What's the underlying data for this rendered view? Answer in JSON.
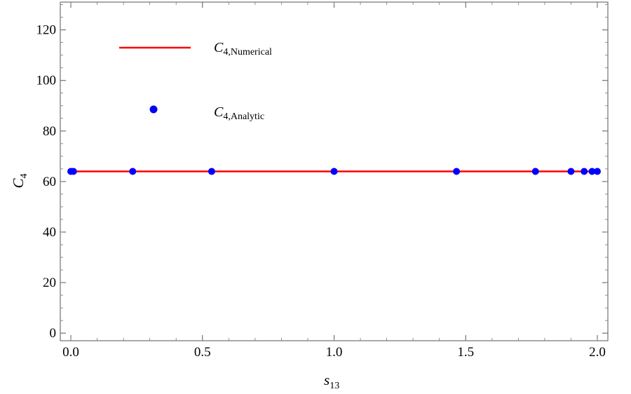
{
  "chart_data": {
    "type": "line",
    "xlabel": {
      "main": "s",
      "sub": "13"
    },
    "ylabel": {
      "main": "C",
      "sub": "4"
    },
    "xlim": [
      -0.04,
      2.04
    ],
    "ylim": [
      -3,
      131
    ],
    "x_ticks": [
      0.0,
      0.5,
      1.0,
      1.5,
      2.0
    ],
    "x_tick_labels": [
      "0.0",
      "0.5",
      "1.0",
      "1.5",
      "2.0"
    ],
    "y_ticks": [
      0,
      20,
      40,
      60,
      80,
      100,
      120
    ],
    "y_tick_labels": [
      "0",
      "20",
      "40",
      "60",
      "80",
      "100",
      "120"
    ],
    "grid": false,
    "legend_position": "top-left",
    "series": [
      {
        "name": {
          "main": "C",
          "sub": "4,Numerical"
        },
        "style": "line",
        "color": "#ff0000",
        "x": [
          0.0,
          2.0
        ],
        "y": [
          64,
          64
        ]
      },
      {
        "name": {
          "main": "C",
          "sub": "4,Analytic"
        },
        "style": "points",
        "color": "#0000ff",
        "x": [
          0.0,
          0.01,
          0.235,
          0.535,
          1.0,
          1.465,
          1.765,
          1.9,
          1.95,
          1.98,
          2.0
        ],
        "y": [
          64,
          64,
          64,
          64,
          64,
          64,
          64,
          64,
          64,
          64,
          64
        ]
      }
    ]
  }
}
